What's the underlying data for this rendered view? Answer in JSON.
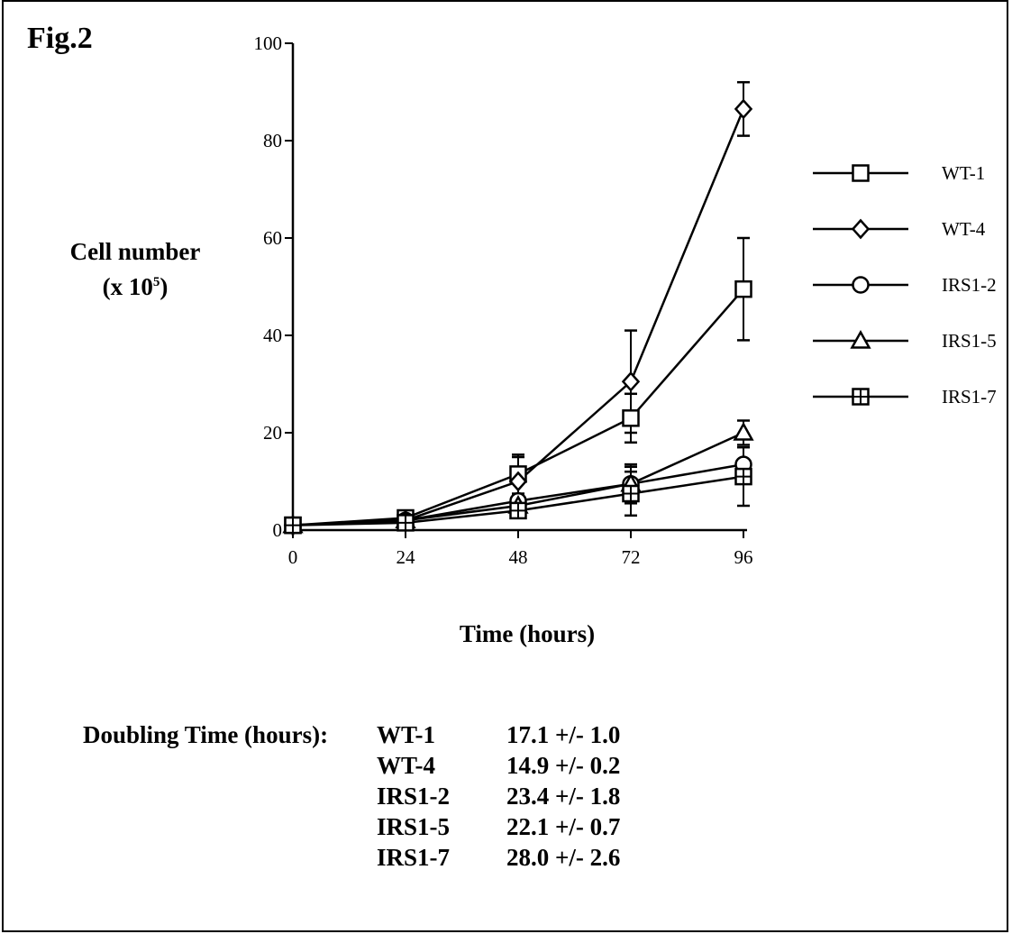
{
  "figure_label": "Fig.2",
  "y_axis_label": "Cell number",
  "y_axis_unit_base": "(x 10",
  "y_axis_unit_exp": "5",
  "y_axis_unit_close": ")",
  "x_axis_label": "Time (hours)",
  "chart_data": {
    "type": "line",
    "x": [
      0,
      24,
      48,
      72,
      96
    ],
    "xlim": [
      0,
      96
    ],
    "ylim": [
      0,
      100
    ],
    "x_ticks": [
      0,
      24,
      48,
      72,
      96
    ],
    "y_ticks": [
      0,
      20,
      40,
      60,
      80,
      100
    ],
    "x_tick_labels": [
      "0",
      "24",
      "48",
      "72",
      "96"
    ],
    "y_tick_labels": [
      "0",
      "20",
      "40",
      "60",
      "80",
      "100"
    ],
    "xlabel": "Time (hours)",
    "ylabel": "Cell number (x 10^5)",
    "grid": false,
    "legend_position": "right",
    "series": [
      {
        "name": "WT-1",
        "marker": "square",
        "values": [
          1,
          2.5,
          11.5,
          23,
          49.5
        ],
        "errors": [
          0,
          0,
          4,
          5,
          10.5
        ]
      },
      {
        "name": "WT-4",
        "marker": "diamond",
        "values": [
          1,
          2,
          10,
          30.5,
          86.5
        ],
        "errors": [
          0,
          0,
          5,
          10.5,
          5.5
        ]
      },
      {
        "name": "IRS1-2",
        "marker": "circle",
        "values": [
          1,
          2,
          6,
          9.5,
          13.5
        ],
        "errors": [
          0,
          0,
          0,
          3.5,
          0
        ]
      },
      {
        "name": "IRS1-5",
        "marker": "triangle",
        "values": [
          1,
          2,
          5,
          9.5,
          20
        ],
        "errors": [
          0,
          0,
          0,
          4,
          2.5
        ]
      },
      {
        "name": "IRS1-7",
        "marker": "square-cross",
        "values": [
          1,
          1.5,
          4,
          7.5,
          11
        ],
        "errors": [
          0,
          0,
          0,
          4.5,
          6
        ]
      }
    ]
  },
  "doubling": {
    "heading": "Doubling Time (hours):",
    "rows": [
      {
        "name": "WT-1",
        "value": "17.1 +/- 1.0"
      },
      {
        "name": "WT-4",
        "value": "14.9 +/- 0.2"
      },
      {
        "name": "IRS1-2",
        "value": "23.4 +/- 1.8"
      },
      {
        "name": "IRS1-5",
        "value": "22.1 +/- 0.7"
      },
      {
        "name": "IRS1-7",
        "value": "28.0 +/- 2.6"
      }
    ]
  }
}
